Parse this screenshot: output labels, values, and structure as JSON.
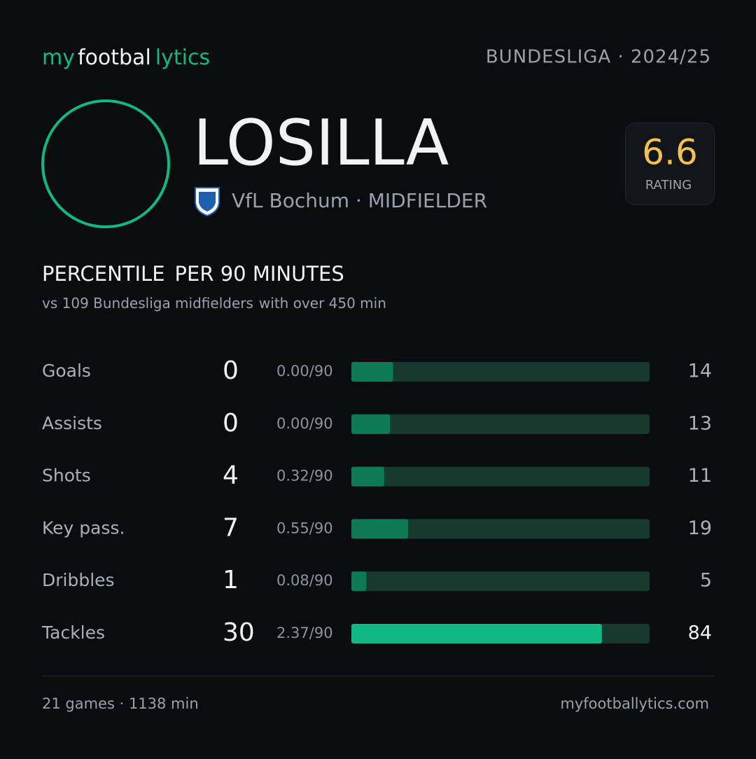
{
  "header": {
    "brand": {
      "part1": "my",
      "part2": "footbal",
      "part3": "lytics"
    },
    "league": "BUNDESLIGA · 2024/25"
  },
  "player": {
    "name": "LOSILLA",
    "club_line": "VfL Bochum · MIDFIELDER",
    "rating": {
      "value": "6.6",
      "label": "RATING"
    }
  },
  "section": {
    "title1": "PERCENTILE",
    "title2": "PER 90 MINUTES",
    "subtitle1": "vs 109 Bundesliga midfielders",
    "subtitle2": "with over 450 min"
  },
  "stats": {
    "xlim": [
      0,
      100
    ],
    "rows": [
      {
        "label": "Goals",
        "total": 0,
        "per90": "0.00/90",
        "percentile": 14,
        "color": "#0e7a55"
      },
      {
        "label": "Assists",
        "total": 0,
        "per90": "0.00/90",
        "percentile": 13,
        "color": "#0e7a55"
      },
      {
        "label": "Shots",
        "total": 4,
        "per90": "0.32/90",
        "percentile": 11,
        "color": "#0e7a55"
      },
      {
        "label": "Key pass.",
        "total": 7,
        "per90": "0.55/90",
        "percentile": 19,
        "color": "#0e7a55"
      },
      {
        "label": "Dribbles",
        "total": 1,
        "per90": "0.08/90",
        "percentile": 5,
        "color": "#0e7a55"
      },
      {
        "label": "Tackles",
        "total": 30,
        "per90": "2.37/90",
        "percentile": 84,
        "color": "#10b981"
      }
    ]
  },
  "footer": {
    "left": "21 games · 1138 min",
    "right": "myfootballytics.com"
  }
}
